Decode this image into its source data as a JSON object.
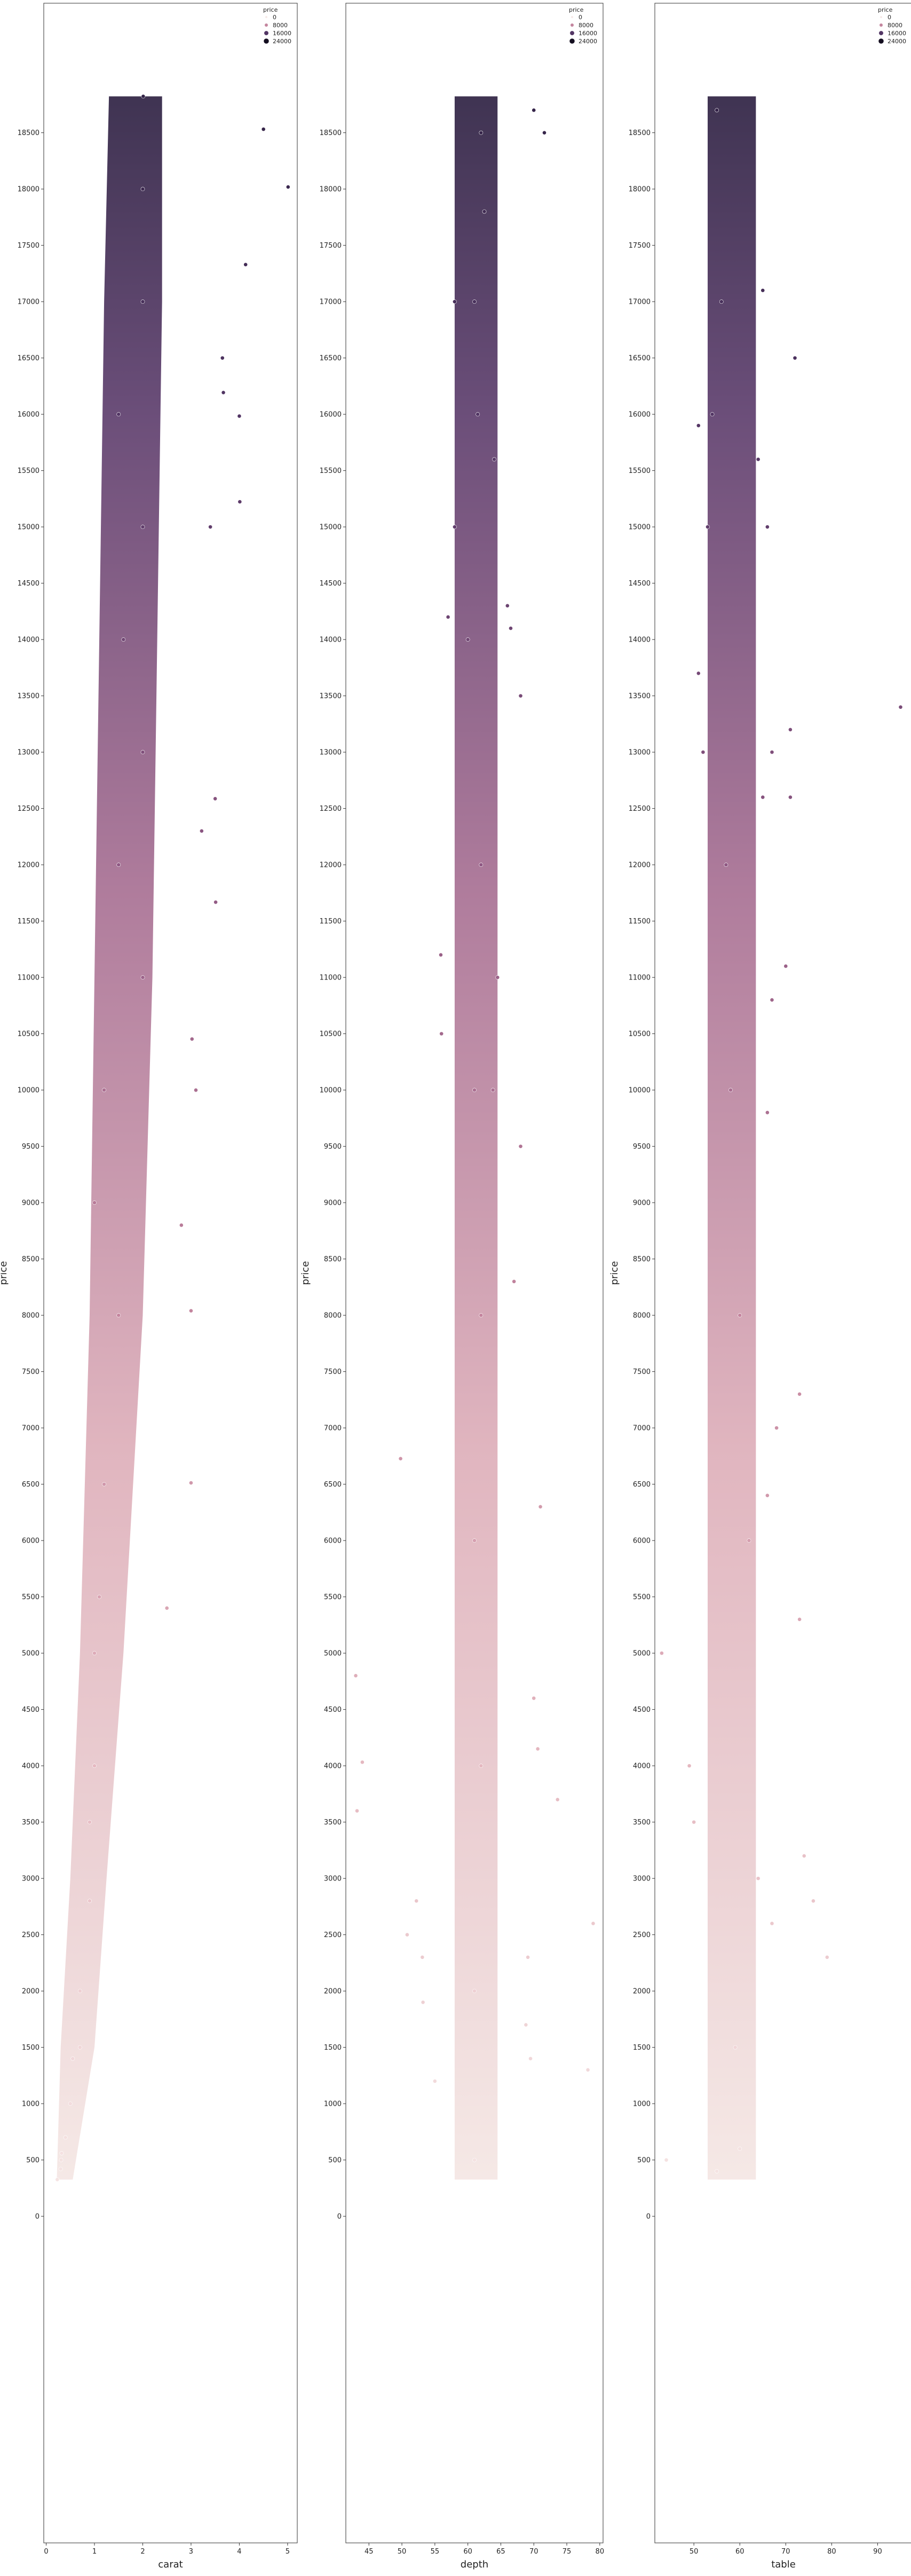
{
  "chart_data": [
    {
      "type": "scatter",
      "xlabel": "carat",
      "ylabel": "price",
      "x_ticks": [
        "0",
        "1",
        "2",
        "3",
        "4",
        "5"
      ],
      "xlim": [
        -0.05,
        5.2
      ],
      "y_ticks": [
        "0",
        "500",
        "1000",
        "1500",
        "2000",
        "2500",
        "3000",
        "3500",
        "4000",
        "4500",
        "5000",
        "5500",
        "6000",
        "6500",
        "7000",
        "7500",
        "8000",
        "8500",
        "9000",
        "9500",
        "10000",
        "10500",
        "11000",
        "11500",
        "12000",
        "12500",
        "13000",
        "13500",
        "14000",
        "14500",
        "15000",
        "15500",
        "16000",
        "16500",
        "17000",
        "17500",
        "18000",
        "18500"
      ],
      "ylim": [
        -2900,
        19650
      ],
      "legend": {
        "title": "price",
        "entries": [
          "0",
          "8000",
          "16000",
          "24000"
        ],
        "location": "upper right"
      },
      "hue": "price",
      "points": [
        [
          0.23,
          326
        ],
        [
          0.3,
          420
        ],
        [
          0.31,
          500
        ],
        [
          0.32,
          560
        ],
        [
          0.4,
          700
        ],
        [
          0.5,
          1000
        ],
        [
          0.55,
          1400
        ],
        [
          0.7,
          1500
        ],
        [
          0.7,
          2000
        ],
        [
          0.9,
          2800
        ],
        [
          0.9,
          3500
        ],
        [
          1.0,
          4000
        ],
        [
          1.0,
          5000
        ],
        [
          1.1,
          5500
        ],
        [
          1.2,
          6500
        ],
        [
          1.5,
          8000
        ],
        [
          1.0,
          9000
        ],
        [
          1.2,
          10000
        ],
        [
          2.0,
          11000
        ],
        [
          1.5,
          12000
        ],
        [
          2.0,
          13000
        ],
        [
          1.6,
          14000
        ],
        [
          2.0,
          15000
        ],
        [
          1.5,
          16000
        ],
        [
          2.0,
          17000
        ],
        [
          2.0,
          18000
        ],
        [
          2.01,
          18823
        ],
        [
          4.5,
          18531
        ],
        [
          5.01,
          18018
        ],
        [
          4.13,
          17329
        ],
        [
          3.65,
          16500
        ],
        [
          4.0,
          15984
        ],
        [
          4.01,
          15223
        ],
        [
          3.4,
          15000
        ],
        [
          3.67,
          16193
        ],
        [
          3.5,
          12587
        ],
        [
          3.22,
          12300
        ],
        [
          3.51,
          11668
        ],
        [
          3.02,
          10453
        ],
        [
          2.8,
          8800
        ],
        [
          3.0,
          8040
        ],
        [
          3.0,
          6512
        ],
        [
          2.5,
          5400
        ],
        [
          3.1,
          9999
        ]
      ]
    },
    {
      "type": "scatter",
      "xlabel": "depth",
      "ylabel": "price",
      "x_ticks": [
        "45",
        "50",
        "55",
        "60",
        "65",
        "70",
        "75",
        "80"
      ],
      "xlim": [
        41.5,
        80.5
      ],
      "y_ticks": [
        "0",
        "500",
        "1000",
        "1500",
        "2000",
        "2500",
        "3000",
        "3500",
        "4000",
        "4500",
        "5000",
        "5500",
        "6000",
        "6500",
        "7000",
        "7500",
        "8000",
        "8500",
        "9000",
        "9500",
        "10000",
        "10500",
        "11000",
        "11500",
        "12000",
        "12500",
        "13000",
        "13500",
        "14000",
        "14500",
        "15000",
        "15500",
        "16000",
        "16500",
        "17000",
        "17500",
        "18000",
        "18500"
      ],
      "ylim": [
        -2900,
        19650
      ],
      "legend": {
        "title": "price",
        "entries": [
          "0",
          "8000",
          "16000",
          "24000"
        ],
        "location": "upper right"
      },
      "hue": "price",
      "points": [
        [
          43,
          4800
        ],
        [
          44,
          4032
        ],
        [
          43.2,
          3600
        ],
        [
          49.8,
          6727
        ],
        [
          50.8,
          2500
        ],
        [
          52.2,
          2800
        ],
        [
          53.1,
          2300
        ],
        [
          53.2,
          1900
        ],
        [
          55.0,
          1200
        ],
        [
          56,
          10500
        ],
        [
          55.9,
          11200
        ],
        [
          57,
          14200
        ],
        [
          58,
          15000
        ],
        [
          61,
          17000
        ],
        [
          62,
          18500
        ],
        [
          62.5,
          17800
        ],
        [
          61.5,
          16000
        ],
        [
          60,
          14000
        ],
        [
          62,
          12000
        ],
        [
          61,
          10000
        ],
        [
          62,
          8000
        ],
        [
          61,
          6000
        ],
        [
          62,
          4000
        ],
        [
          61,
          2000
        ],
        [
          61,
          500
        ],
        [
          66,
          14300
        ],
        [
          66.5,
          14100
        ],
        [
          68,
          13500
        ],
        [
          70,
          18700
        ],
        [
          71.6,
          18500
        ],
        [
          68,
          9500
        ],
        [
          67,
          8300
        ],
        [
          70,
          4600
        ],
        [
          70.6,
          4150
        ],
        [
          71,
          6300
        ],
        [
          73.6,
          3700
        ],
        [
          79,
          2600
        ],
        [
          78.2,
          1300
        ],
        [
          69.5,
          1400
        ],
        [
          69.1,
          2300
        ],
        [
          68.8,
          1700
        ],
        [
          64.5,
          11000
        ],
        [
          63.8,
          10000
        ],
        [
          64,
          15600
        ],
        [
          58,
          17000
        ]
      ]
    },
    {
      "type": "scatter",
      "xlabel": "table",
      "ylabel": "price",
      "x_ticks": [
        "50",
        "60",
        "70",
        "80",
        "90"
      ],
      "xlim": [
        41.5,
        97.5
      ],
      "y_ticks": [
        "0",
        "500",
        "1000",
        "1500",
        "2000",
        "2500",
        "3000",
        "3500",
        "4000",
        "4500",
        "5000",
        "5500",
        "6000",
        "6500",
        "7000",
        "7500",
        "8000",
        "8500",
        "9000",
        "9500",
        "10000",
        "10500",
        "11000",
        "11500",
        "12000",
        "12500",
        "13000",
        "13500",
        "14000",
        "14500",
        "15000",
        "15500",
        "16000",
        "16500",
        "17000",
        "17500",
        "18000",
        "18500"
      ],
      "ylim": [
        -2900,
        19650
      ],
      "legend": {
        "title": "price",
        "entries": [
          "0",
          "8000",
          "16000",
          "24000"
        ],
        "location": "upper right"
      },
      "hue": "price",
      "points": [
        [
          43,
          5000
        ],
        [
          44,
          500
        ],
        [
          49,
          4000
        ],
        [
          50,
          3500
        ],
        [
          51,
          15900
        ],
        [
          51,
          13700
        ],
        [
          52,
          13000
        ],
        [
          53,
          15000
        ],
        [
          54,
          16000
        ],
        [
          55,
          18700
        ],
        [
          56,
          17000
        ],
        [
          57,
          12000
        ],
        [
          58,
          10000
        ],
        [
          60,
          8000
        ],
        [
          62,
          6000
        ],
        [
          64,
          3000
        ],
        [
          59,
          1500
        ],
        [
          60,
          600
        ],
        [
          55,
          400
        ],
        [
          64,
          15600
        ],
        [
          65,
          17100
        ],
        [
          65,
          12600
        ],
        [
          66,
          9800
        ],
        [
          66,
          6400
        ],
        [
          67,
          2600
        ],
        [
          70,
          11100
        ],
        [
          71,
          12600
        ],
        [
          71,
          13200
        ],
        [
          72,
          16500
        ],
        [
          73,
          5300
        ],
        [
          73,
          7300
        ],
        [
          74,
          3200
        ],
        [
          76,
          2800
        ],
        [
          79,
          2300
        ],
        [
          95,
          13400
        ],
        [
          68,
          7000
        ],
        [
          66,
          15000
        ],
        [
          67,
          13000
        ],
        [
          67,
          10800
        ]
      ]
    }
  ]
}
